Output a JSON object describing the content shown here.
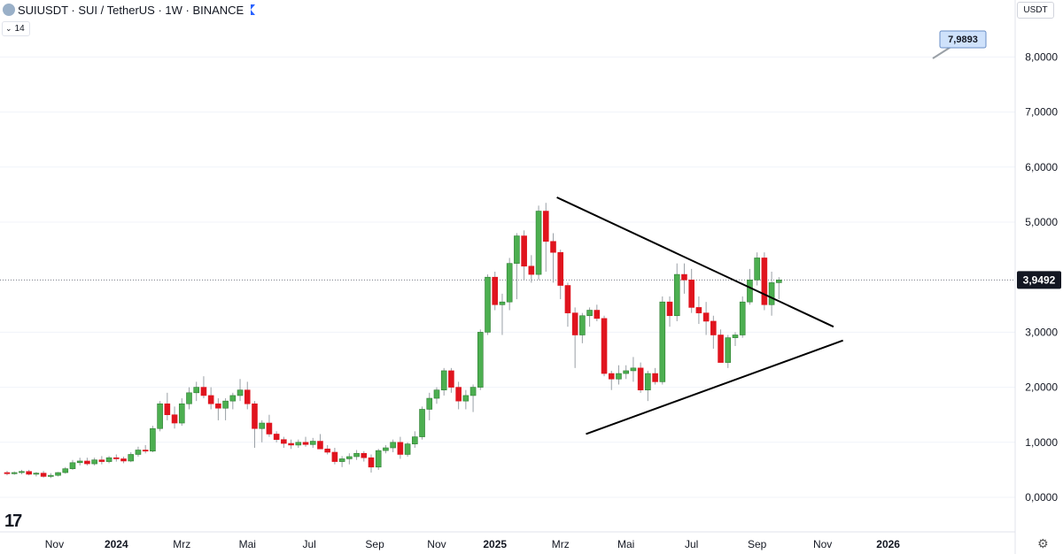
{
  "header": {
    "title": "SUIUSDT · SUI / TetherUS · 1W · BINANCE",
    "indicator_chevron": "⌄",
    "indicator_value": "14",
    "flag_color": "#2962ff"
  },
  "price_axis": {
    "unit_label": "USDT",
    "tick_labels": [
      "8,0000",
      "7,0000",
      "6,0000",
      "5,0000",
      "3,0000",
      "2,0000",
      "1,0000",
      "0,0000"
    ]
  },
  "time_axis": {
    "labels": [
      "Nov",
      "2024",
      "Mrz",
      "Mai",
      "Jul",
      "Sep",
      "Nov",
      "2025",
      "Mrz",
      "Mai",
      "Jul",
      "Sep",
      "Nov",
      "2026"
    ],
    "bold_labels": [
      "2024",
      "2025",
      "2026"
    ]
  },
  "last_price": {
    "label": "3,9492",
    "value": 3.9492
  },
  "marker": {
    "label": "7,9893",
    "value": 7.9893,
    "color": "#cfe2fb",
    "border": "#6a8fc7"
  },
  "colors": {
    "up": "#4caf50",
    "down": "#e0141e",
    "up_border": "#2e7d32",
    "wick": "#9aa0a6",
    "line": "#000000"
  },
  "brand": {
    "logo_text": "17"
  },
  "icons": {
    "settings": "gear-icon",
    "symbol": "symbol-logo-icon"
  },
  "chart_data": {
    "type": "candlestick",
    "timeframe": "1W",
    "x_unit": "weeks from first visible candle (2023-10)",
    "ylim": [
      -0.6,
      9.0
    ],
    "y_ticks": [
      0,
      1,
      2,
      3,
      5,
      6,
      7,
      8
    ],
    "candles": [
      [
        0.45,
        0.48,
        0.4,
        0.43
      ],
      [
        0.43,
        0.47,
        0.41,
        0.45
      ],
      [
        0.45,
        0.5,
        0.42,
        0.47
      ],
      [
        0.47,
        0.5,
        0.4,
        0.42
      ],
      [
        0.42,
        0.46,
        0.38,
        0.44
      ],
      [
        0.44,
        0.48,
        0.36,
        0.38
      ],
      [
        0.38,
        0.44,
        0.35,
        0.4
      ],
      [
        0.4,
        0.46,
        0.38,
        0.45
      ],
      [
        0.45,
        0.55,
        0.43,
        0.52
      ],
      [
        0.52,
        0.68,
        0.5,
        0.63
      ],
      [
        0.63,
        0.72,
        0.58,
        0.66
      ],
      [
        0.66,
        0.72,
        0.58,
        0.61
      ],
      [
        0.61,
        0.72,
        0.58,
        0.68
      ],
      [
        0.68,
        0.75,
        0.6,
        0.65
      ],
      [
        0.65,
        0.75,
        0.62,
        0.72
      ],
      [
        0.72,
        0.78,
        0.65,
        0.7
      ],
      [
        0.7,
        0.74,
        0.62,
        0.66
      ],
      [
        0.66,
        0.82,
        0.64,
        0.78
      ],
      [
        0.78,
        0.92,
        0.74,
        0.86
      ],
      [
        0.86,
        0.95,
        0.8,
        0.84
      ],
      [
        0.84,
        1.3,
        0.82,
        1.25
      ],
      [
        1.25,
        1.75,
        1.2,
        1.7
      ],
      [
        1.7,
        1.9,
        1.4,
        1.5
      ],
      [
        1.5,
        1.65,
        1.25,
        1.35
      ],
      [
        1.35,
        1.8,
        1.3,
        1.7
      ],
      [
        1.7,
        2.0,
        1.6,
        1.9
      ],
      [
        1.9,
        2.1,
        1.75,
        2.0
      ],
      [
        2.0,
        2.2,
        1.8,
        1.85
      ],
      [
        1.85,
        2.0,
        1.6,
        1.7
      ],
      [
        1.7,
        1.8,
        1.4,
        1.62
      ],
      [
        1.62,
        1.8,
        1.4,
        1.75
      ],
      [
        1.75,
        1.9,
        1.6,
        1.85
      ],
      [
        1.85,
        2.15,
        1.75,
        1.95
      ],
      [
        1.95,
        2.1,
        1.6,
        1.7
      ],
      [
        1.7,
        1.75,
        0.9,
        1.25
      ],
      [
        1.25,
        1.4,
        1.0,
        1.35
      ],
      [
        1.35,
        1.5,
        1.1,
        1.15
      ],
      [
        1.15,
        1.2,
        1.0,
        1.05
      ],
      [
        1.05,
        1.1,
        0.9,
        0.98
      ],
      [
        0.98,
        1.05,
        0.88,
        0.95
      ],
      [
        0.95,
        1.05,
        0.9,
        1.0
      ],
      [
        1.0,
        1.1,
        0.92,
        0.96
      ],
      [
        0.96,
        1.08,
        0.9,
        1.02
      ],
      [
        1.02,
        1.15,
        0.95,
        0.88
      ],
      [
        0.88,
        0.95,
        0.78,
        0.82
      ],
      [
        0.82,
        0.9,
        0.6,
        0.65
      ],
      [
        0.65,
        0.75,
        0.55,
        0.7
      ],
      [
        0.7,
        0.8,
        0.6,
        0.74
      ],
      [
        0.74,
        0.86,
        0.68,
        0.8
      ],
      [
        0.8,
        0.84,
        0.65,
        0.72
      ],
      [
        0.72,
        0.78,
        0.45,
        0.55
      ],
      [
        0.55,
        0.88,
        0.5,
        0.85
      ],
      [
        0.85,
        0.95,
        0.8,
        0.9
      ],
      [
        0.9,
        1.05,
        0.82,
        1.0
      ],
      [
        1.0,
        1.1,
        0.7,
        0.78
      ],
      [
        0.78,
        1.0,
        0.74,
        0.97
      ],
      [
        0.97,
        1.2,
        0.9,
        1.1
      ],
      [
        1.1,
        1.65,
        1.05,
        1.6
      ],
      [
        1.6,
        1.9,
        1.4,
        1.8
      ],
      [
        1.8,
        2.0,
        1.7,
        1.95
      ],
      [
        1.95,
        2.35,
        1.85,
        2.3
      ],
      [
        2.3,
        2.35,
        1.9,
        2.0
      ],
      [
        2.0,
        2.1,
        1.6,
        1.75
      ],
      [
        1.75,
        1.95,
        1.6,
        1.85
      ],
      [
        1.85,
        2.05,
        1.55,
        2.0
      ],
      [
        2.0,
        3.05,
        1.95,
        3.0
      ],
      [
        3.0,
        4.05,
        2.95,
        4.0
      ],
      [
        4.0,
        4.1,
        3.4,
        3.5
      ],
      [
        3.5,
        3.7,
        2.95,
        3.55
      ],
      [
        3.55,
        4.35,
        3.4,
        4.25
      ],
      [
        4.25,
        4.8,
        3.6,
        4.75
      ],
      [
        4.75,
        4.85,
        3.95,
        4.2
      ],
      [
        4.2,
        4.4,
        3.9,
        4.05
      ],
      [
        4.05,
        5.3,
        3.95,
        5.2
      ],
      [
        5.2,
        5.35,
        4.1,
        4.65
      ],
      [
        4.65,
        4.8,
        3.9,
        4.45
      ],
      [
        4.45,
        4.5,
        3.6,
        3.85
      ],
      [
        3.85,
        3.9,
        3.1,
        3.35
      ],
      [
        3.35,
        3.45,
        2.35,
        2.95
      ],
      [
        2.95,
        3.35,
        2.8,
        3.3
      ],
      [
        3.3,
        3.45,
        3.1,
        3.4
      ],
      [
        3.4,
        3.5,
        3.2,
        3.25
      ],
      [
        3.25,
        3.3,
        2.2,
        2.25
      ],
      [
        2.25,
        2.3,
        1.95,
        2.15
      ],
      [
        2.15,
        2.4,
        2.05,
        2.25
      ],
      [
        2.25,
        2.4,
        2.15,
        2.3
      ],
      [
        2.3,
        2.55,
        2.1,
        2.35
      ],
      [
        2.35,
        2.45,
        1.9,
        1.95
      ],
      [
        1.95,
        2.3,
        1.75,
        2.25
      ],
      [
        2.25,
        2.35,
        2.05,
        2.1
      ],
      [
        2.1,
        3.65,
        2.05,
        3.55
      ],
      [
        3.55,
        3.65,
        3.1,
        3.3
      ],
      [
        3.3,
        4.25,
        3.2,
        4.05
      ],
      [
        4.05,
        4.25,
        3.7,
        3.95
      ],
      [
        3.95,
        4.15,
        3.35,
        3.45
      ],
      [
        3.45,
        3.65,
        3.15,
        3.35
      ],
      [
        3.35,
        3.55,
        2.95,
        3.2
      ],
      [
        3.2,
        3.3,
        2.7,
        2.95
      ],
      [
        2.95,
        3.05,
        2.45,
        2.45
      ],
      [
        2.45,
        2.95,
        2.35,
        2.9
      ],
      [
        2.9,
        3.0,
        2.75,
        2.95
      ],
      [
        2.95,
        3.65,
        2.9,
        3.55
      ],
      [
        3.55,
        4.15,
        3.5,
        3.95
      ],
      [
        3.95,
        4.45,
        3.85,
        4.35
      ],
      [
        4.35,
        4.45,
        3.4,
        3.5
      ],
      [
        3.5,
        4.1,
        3.3,
        3.9
      ],
      [
        3.9,
        4.0,
        3.6,
        3.95
      ]
    ],
    "trendlines": [
      {
        "name": "upper",
        "from": [
          75.5,
          5.45
        ],
        "to": [
          113.5,
          3.1
        ]
      },
      {
        "name": "lower",
        "from": [
          79.5,
          1.15
        ],
        "to": [
          114.8,
          2.85
        ]
      }
    ],
    "x_tick_positions": [
      6.5,
      15.0,
      24.0,
      33.0,
      41.5,
      50.5,
      59.0,
      67.0,
      76.0,
      85.0,
      94.0,
      103.0,
      112.0,
      121.0
    ]
  }
}
